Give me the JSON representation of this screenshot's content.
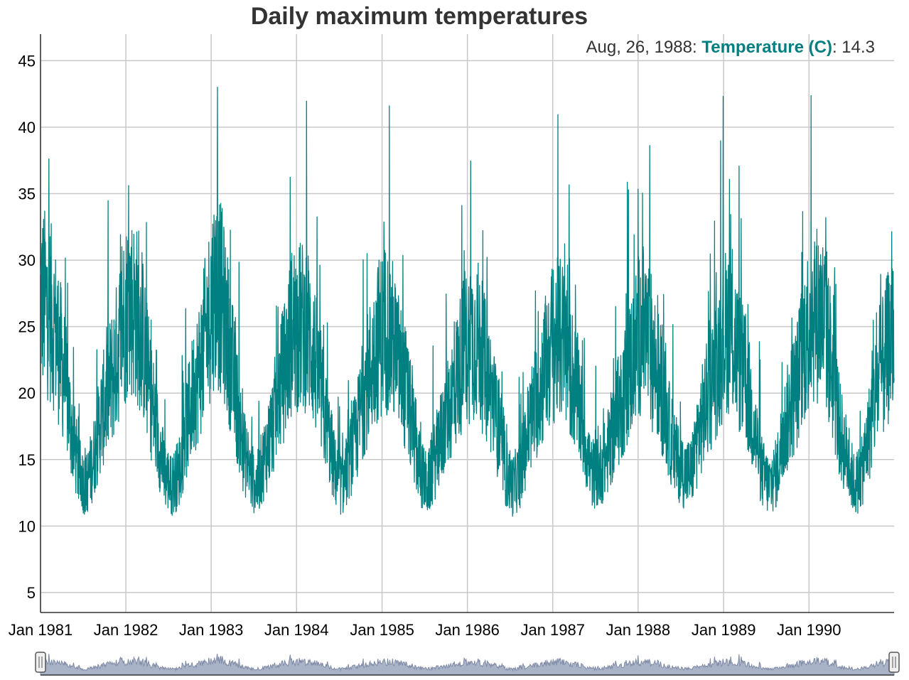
{
  "chart_data": {
    "type": "line",
    "title": "Daily maximum temperatures",
    "xlabel": "",
    "ylabel": "",
    "x_range": [
      "1981-01-01",
      "1990-12-31"
    ],
    "ylim": [
      3.5,
      47
    ],
    "y_ticks": [
      5,
      10,
      15,
      20,
      25,
      30,
      35,
      40,
      45
    ],
    "x_ticks": [
      "1981-01-01",
      "1982-01-01",
      "1983-01-01",
      "1984-01-01",
      "1985-01-01",
      "1986-01-01",
      "1987-01-01",
      "1988-01-01",
      "1989-01-01",
      "1990-01-01"
    ],
    "x_tick_labels": [
      "Jan 1981",
      "Jan 1982",
      "Jan 1983",
      "Jan 1984",
      "Jan 1985",
      "Jan 1986",
      "Jan 1987",
      "Jan 1988",
      "Jan 1989",
      "Jan 1990"
    ],
    "grid": true,
    "range_selector": true,
    "colors": {
      "series": "#008080",
      "range_fill": "#a9b3c8",
      "range_stroke": "#7f8aa6"
    },
    "legend": {
      "date": "Aug, 26, 1988",
      "series_name": "Temperature (C)",
      "value": "14.3",
      "placement": "top-right"
    },
    "series": [
      {
        "name": "Temperature (C)",
        "x": [
          "1981-01-15",
          "1981-02-15",
          "1981-03-15",
          "1981-04-15",
          "1981-05-15",
          "1981-06-15",
          "1981-07-15",
          "1981-08-15",
          "1981-09-15",
          "1981-10-15",
          "1981-11-15",
          "1981-12-15",
          "1982-01-15",
          "1982-02-15",
          "1982-03-15",
          "1982-04-15",
          "1982-05-15",
          "1982-06-15",
          "1982-07-15",
          "1982-08-15",
          "1982-09-15",
          "1982-10-15",
          "1982-11-15",
          "1982-12-15",
          "1983-01-15",
          "1983-02-15",
          "1983-03-15",
          "1983-04-15",
          "1983-05-15",
          "1983-06-15",
          "1983-07-15",
          "1983-08-15",
          "1983-09-15",
          "1983-10-15",
          "1983-11-15",
          "1983-12-15",
          "1984-01-15",
          "1984-02-15",
          "1984-03-15",
          "1984-04-15",
          "1984-05-15",
          "1984-06-15",
          "1984-07-15",
          "1984-08-15",
          "1984-09-15",
          "1984-10-15",
          "1984-11-15",
          "1984-12-15",
          "1985-01-15",
          "1985-02-15",
          "1985-03-15",
          "1985-04-15",
          "1985-05-15",
          "1985-06-15",
          "1985-07-15",
          "1985-08-15",
          "1985-09-15",
          "1985-10-15",
          "1985-11-15",
          "1985-12-15",
          "1986-01-15",
          "1986-02-15",
          "1986-03-15",
          "1986-04-15",
          "1986-05-15",
          "1986-06-15",
          "1986-07-15",
          "1986-08-15",
          "1986-09-15",
          "1986-10-15",
          "1986-11-15",
          "1986-12-15",
          "1987-01-15",
          "1987-02-15",
          "1987-03-15",
          "1987-04-15",
          "1987-05-15",
          "1987-06-15",
          "1987-07-15",
          "1987-08-15",
          "1987-09-15",
          "1987-10-15",
          "1987-11-15",
          "1987-12-15",
          "1988-01-15",
          "1988-02-15",
          "1988-03-15",
          "1988-04-15",
          "1988-05-15",
          "1988-06-15",
          "1988-07-15",
          "1988-08-15",
          "1988-09-15",
          "1988-10-15",
          "1988-11-15",
          "1988-12-15",
          "1989-01-15",
          "1989-02-15",
          "1989-03-15",
          "1989-04-15",
          "1989-05-15",
          "1989-06-15",
          "1989-07-15",
          "1989-08-15",
          "1989-09-15",
          "1989-10-15",
          "1989-11-15",
          "1989-12-15",
          "1990-01-15",
          "1990-02-15",
          "1990-03-15",
          "1990-04-15",
          "1990-05-15",
          "1990-06-15",
          "1990-07-15",
          "1990-08-15",
          "1990-09-15",
          "1990-10-15",
          "1990-11-15",
          "1990-12-15"
        ],
        "y": [
          27,
          26,
          24,
          21,
          17,
          14,
          13,
          15,
          18,
          20,
          22,
          25,
          27,
          26,
          24,
          20,
          17,
          14,
          13,
          14,
          17,
          20,
          22,
          25,
          28,
          27,
          24,
          20,
          16,
          14,
          13,
          15,
          17,
          20,
          22,
          25,
          25,
          25,
          23,
          20,
          17,
          14,
          13,
          15,
          17,
          20,
          22,
          24,
          25,
          24,
          22,
          20,
          17,
          14,
          13,
          15,
          17,
          19,
          21,
          23,
          24,
          24,
          22,
          20,
          17,
          14,
          13,
          14,
          17,
          19,
          21,
          23,
          24,
          24,
          22,
          20,
          17,
          14,
          14,
          15,
          17,
          19,
          21,
          23,
          25,
          24,
          22,
          20,
          17,
          15,
          14,
          14,
          17,
          19,
          21,
          23,
          25,
          24,
          22,
          20,
          17,
          14,
          13,
          14,
          17,
          19,
          21,
          24,
          26,
          26,
          25,
          21,
          17,
          15,
          13,
          14,
          17,
          20,
          22,
          24
        ]
      }
    ]
  }
}
